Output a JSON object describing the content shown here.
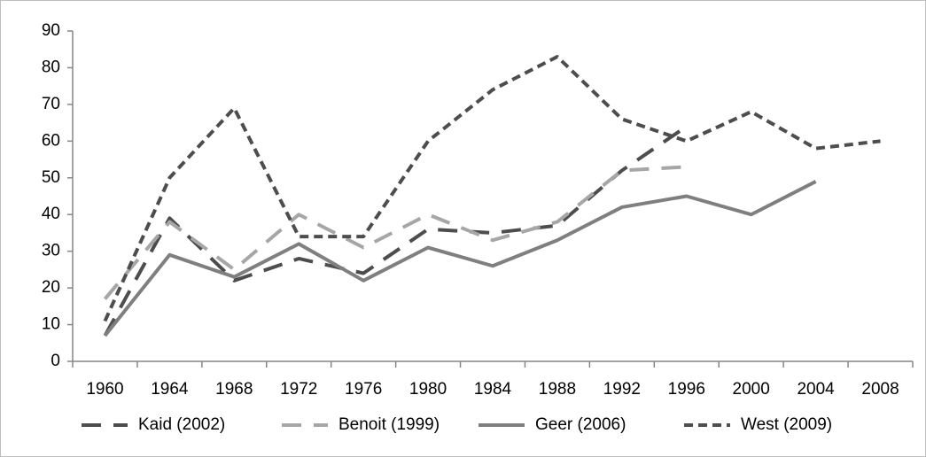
{
  "chart_data": {
    "type": "line",
    "categories": [
      "1960",
      "1964",
      "1968",
      "1972",
      "1976",
      "1980",
      "1984",
      "1988",
      "1992",
      "1996",
      "2000",
      "2004",
      "2008"
    ],
    "series": [
      {
        "name": "Kaid (2002)",
        "color": "#4d4d4d",
        "dash": "long",
        "values": [
          7,
          39,
          22,
          28,
          24,
          36,
          35,
          37,
          52,
          64,
          null,
          null,
          null
        ]
      },
      {
        "name": "Benoit (1999)",
        "color": "#a6a6a6",
        "dash": "long",
        "values": [
          17,
          38,
          25,
          40,
          31,
          40,
          33,
          38,
          52,
          53,
          null,
          null,
          null
        ]
      },
      {
        "name": "Geer (2006)",
        "color": "#7f7f7f",
        "dash": "solid",
        "values": [
          7,
          29,
          23,
          32,
          22,
          31,
          26,
          33,
          42,
          45,
          40,
          49,
          null
        ]
      },
      {
        "name": "West (2009)",
        "color": "#4d4d4d",
        "dash": "short",
        "values": [
          11,
          50,
          69,
          34,
          34,
          60,
          74,
          83,
          66,
          60,
          68,
          58,
          60
        ]
      }
    ],
    "ylim": [
      0,
      90
    ],
    "yticks": [
      0,
      10,
      20,
      30,
      40,
      50,
      60,
      70,
      80,
      90
    ],
    "legend": "bottom"
  }
}
